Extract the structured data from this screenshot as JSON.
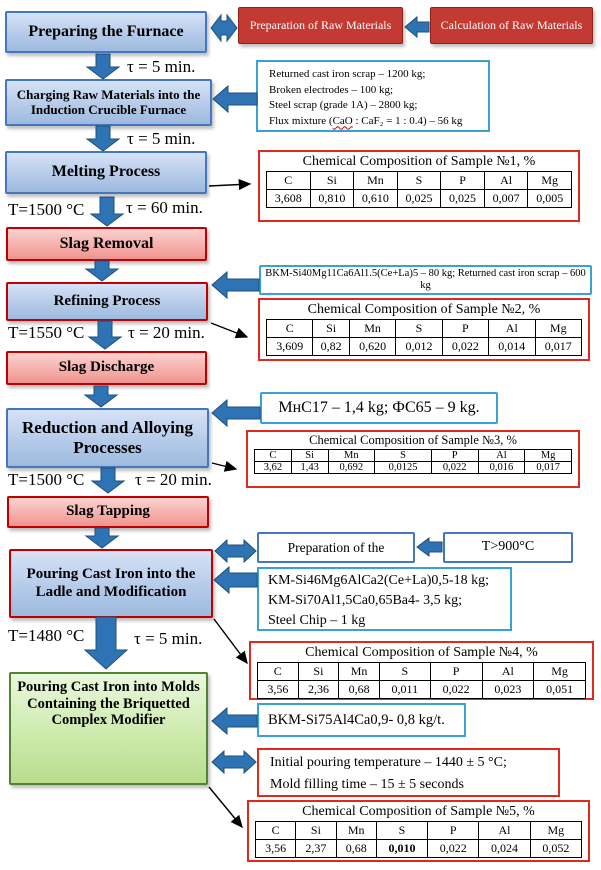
{
  "flow": {
    "boxes": {
      "prep_furnace": "Preparing the Furnace",
      "charging": "Charging Raw Materials into the Induction Crucible Furnace",
      "melting": "Melting Process",
      "slag_removal": "Slag Removal",
      "refining": "Refining Process",
      "slag_discharge": "Slag Discharge",
      "reduction": "Reduction and Alloying Processes",
      "slag_tapping": "Slag Tapping",
      "pouring_ladle": "Pouring Cast Iron into the Ladle and Modification",
      "pouring_molds": "Pouring Cast Iron into Molds Containing the Briquetted Complex Modifier"
    },
    "labels": {
      "tau1": "τ = 5 min.",
      "tau2": "τ = 5 min.",
      "temp3": "T=1500 °C",
      "tau3": "τ = 60 min.",
      "temp5": "T=1550 °C",
      "tau5": "τ = 20 min.",
      "temp7": "T=1500 °C",
      "tau7": "τ = 20 min.",
      "temp9": "T=1480 °C",
      "tau9": "τ = 5 min."
    }
  },
  "side": {
    "prep_raw": "Preparation of Raw Materials",
    "calc_raw": "Calculation of Raw Materials",
    "raw_list": [
      "Returned cast iron scrap – 1200 kg;",
      "Broken electrodes – 100 kg;",
      "Steel scrap (grade 1A) – 2800 kg;"
    ],
    "flux": {
      "pre": "Flux mixture (",
      "cao": "CaO",
      "post": " : CaF₂ = 1 : 0.4) – 56 kg"
    },
    "bkm40": "BKM-Si40Mg11Ca6Al1.5(Ce+La)5 – 80 kg; Returned cast iron scrap – 600 kg",
    "mnc17": "МнС17 – 1,4 kg; ФС65 – 9 kg.",
    "prep_of_the": "Preparation of the",
    "t900": "T>900°C",
    "km46_lines": [
      "KM-Si46Mg6AlCa2(Ce+La)0,5-18 kg;",
      "KM-Si70Al1,5Ca0,65Ba4- 3,5 kg;",
      "Steel Chip – 1 kg"
    ],
    "bkm75": "BKM-Si75Al4Ca0,9- 0,8 kg/t.",
    "pouring_params": [
      "Initial pouring temperature – 1440 ± 5 °C;",
      "Mold filling time – 15 ± 5 seconds"
    ]
  },
  "tables": {
    "t1": {
      "title": "Chemical Composition of Sample №1, %",
      "columns": [
        "C",
        "Si",
        "Mn",
        "S",
        "P",
        "Al",
        "Mg"
      ],
      "rows": [
        [
          "3,608",
          "0,810",
          "0,610",
          "0,025",
          "0,025",
          "0,007",
          "0,005"
        ]
      ]
    },
    "t2": {
      "title": "Chemical Composition of Sample №2, %",
      "columns": [
        "C",
        "Si",
        "Mn",
        "S",
        "P",
        "Al",
        "Mg"
      ],
      "rows": [
        [
          "3,609",
          "0,82",
          "0,620",
          "0,012",
          "0,022",
          "0,014",
          "0,017"
        ]
      ]
    },
    "t3": {
      "title": "Chemical Composition of Sample №3, %",
      "columns": [
        "C",
        "Si",
        "Mn",
        "S",
        "P",
        "Al",
        "Mg"
      ],
      "rows": [
        [
          "3,62",
          "1,43",
          "0,692",
          "0,0125",
          "0,022",
          "0,016",
          "0,017"
        ]
      ]
    },
    "t4": {
      "title": "Chemical Composition of Sample №4, %",
      "columns": [
        "C",
        "Si",
        "Mn",
        "S",
        "P",
        "Al",
        "Mg"
      ],
      "rows": [
        [
          "3,56",
          "2,36",
          "0,68",
          "0,011",
          "0,022",
          "0,023",
          "0,051"
        ]
      ]
    },
    "t5": {
      "title": "Chemical Composition of Sample №5, %",
      "columns": [
        "C",
        "Si",
        "Mn",
        "S",
        "P",
        "Al",
        "Mg"
      ],
      "rows": [
        [
          "3,56",
          "2,37",
          "0,68",
          "0,010",
          "0,022",
          "0,024",
          "0,052"
        ]
      ],
      "bold": [
        [
          0,
          3
        ]
      ]
    }
  },
  "colors": {
    "process_blue_fill": "#b6cbea",
    "process_blue_border": "#4577bd",
    "slag_pink_fill": "#f4a7a2",
    "red_accent": "#c00000",
    "raw_red_fill": "#c23a31",
    "info_blue_border": "#37a2d7",
    "table_red_border": "#e02a1e",
    "arrow_blue": "#2e74b5",
    "green_fill": "#cdeaae",
    "green_border": "#538135"
  }
}
